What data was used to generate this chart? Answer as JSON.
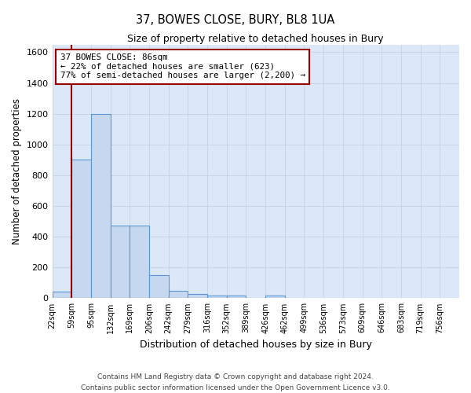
{
  "title": "37, BOWES CLOSE, BURY, BL8 1UA",
  "subtitle": "Size of property relative to detached houses in Bury",
  "xlabel": "Distribution of detached houses by size in Bury",
  "ylabel": "Number of detached properties",
  "bin_labels": [
    "22sqm",
    "59sqm",
    "95sqm",
    "132sqm",
    "169sqm",
    "206sqm",
    "242sqm",
    "279sqm",
    "316sqm",
    "352sqm",
    "389sqm",
    "426sqm",
    "462sqm",
    "499sqm",
    "536sqm",
    "573sqm",
    "609sqm",
    "646sqm",
    "683sqm",
    "719sqm",
    "756sqm"
  ],
  "bar_values": [
    45,
    900,
    1200,
    470,
    470,
    150,
    50,
    30,
    15,
    20,
    0,
    20,
    0,
    0,
    0,
    0,
    0,
    0,
    0,
    0,
    0
  ],
  "bar_color": "#c5d8f0",
  "bar_edge_color": "#5a96d4",
  "bar_width": 1.0,
  "ylim": [
    0,
    1650
  ],
  "yticks": [
    0,
    200,
    400,
    600,
    800,
    1000,
    1200,
    1400,
    1600
  ],
  "vline_x": 1.0,
  "property_label": "37 BOWES CLOSE: 86sqm",
  "annotation_line1": "← 22% of detached houses are smaller (623)",
  "annotation_line2": "77% of semi-detached houses are larger (2,200) →",
  "vline_color": "#990000",
  "grid_color": "#c8d4e8",
  "background_color": "#dce8f8",
  "footer1": "Contains HM Land Registry data © Crown copyright and database right 2024.",
  "footer2": "Contains public sector information licensed under the Open Government Licence v3.0."
}
